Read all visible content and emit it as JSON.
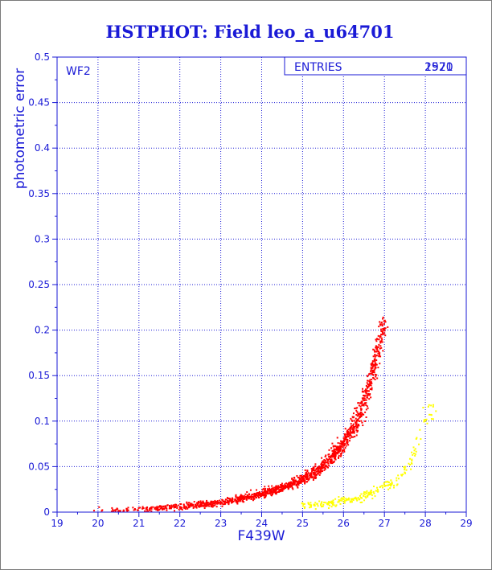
{
  "chart_data": {
    "type": "scatter",
    "title": "HSTPHOT: Field leo_a_u64701",
    "xlabel": "F439W",
    "ylabel": "photometric error",
    "panel_label": "WF2",
    "stats_box": {
      "label": "ENTRIES",
      "value_a": "2970",
      "value_b": "1521"
    },
    "xlim": [
      19,
      29
    ],
    "ylim": [
      0,
      0.5
    ],
    "xticks": [
      "19",
      "20",
      "21",
      "22",
      "23",
      "24",
      "25",
      "26",
      "27",
      "28",
      "29"
    ],
    "yticks": [
      "0",
      "0.05",
      "0.1",
      "0.15",
      "0.2",
      "0.25",
      "0.3",
      "0.35",
      "0.4",
      "0.45",
      "0.5"
    ],
    "grid": true,
    "series": [
      {
        "color": "#ff0000",
        "trend": [
          [
            19.5,
            0.001
          ],
          [
            21.0,
            0.003
          ],
          [
            22.0,
            0.006
          ],
          [
            23.0,
            0.011
          ],
          [
            23.5,
            0.015
          ],
          [
            24.0,
            0.02
          ],
          [
            24.5,
            0.027
          ],
          [
            25.0,
            0.036
          ],
          [
            25.5,
            0.05
          ],
          [
            26.0,
            0.075
          ],
          [
            26.3,
            0.098
          ],
          [
            26.5,
            0.12
          ],
          [
            26.7,
            0.15
          ],
          [
            26.85,
            0.18
          ],
          [
            27.0,
            0.21
          ]
        ]
      },
      {
        "color": "#ffff00",
        "trend": [
          [
            25.0,
            0.007
          ],
          [
            25.5,
            0.009
          ],
          [
            26.0,
            0.012
          ],
          [
            26.5,
            0.017
          ],
          [
            27.0,
            0.027
          ],
          [
            27.3,
            0.035
          ],
          [
            27.6,
            0.05
          ],
          [
            27.9,
            0.09
          ],
          [
            28.2,
            0.12
          ]
        ]
      }
    ]
  }
}
